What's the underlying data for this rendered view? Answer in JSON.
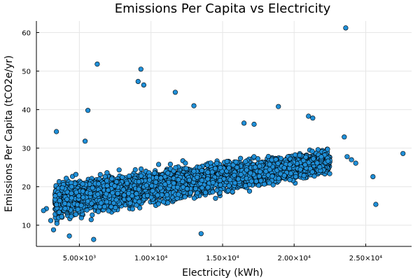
{
  "chart_data": {
    "type": "scatter",
    "title": "Emissions Per Capita vs Electricity",
    "xlabel": "Electricity (kWh)",
    "ylabel": "Emissions Per Capita (tCO2e/yr)",
    "xlim": [
      2000,
      28200
    ],
    "ylim": [
      4.5,
      63
    ],
    "grid": true,
    "legend": "none",
    "marker_color": "#1f8fd8",
    "x_ticks": [
      {
        "value": 5000,
        "label": "5.00×10³"
      },
      {
        "value": 10000,
        "label": "1.00×10⁴"
      },
      {
        "value": 15000,
        "label": "1.50×10⁴"
      },
      {
        "value": 20000,
        "label": "2.00×10⁴"
      },
      {
        "value": 25000,
        "label": "2.50×10⁴"
      }
    ],
    "y_ticks": [
      {
        "value": 10,
        "label": "10"
      },
      {
        "value": 20,
        "label": "20"
      },
      {
        "value": 30,
        "label": "30"
      },
      {
        "value": 40,
        "label": "40"
      },
      {
        "value": 50,
        "label": "50"
      },
      {
        "value": 60,
        "label": "60"
      }
    ],
    "series": [
      {
        "points": [
          {
            "x": 23600,
            "y": 61.2
          },
          {
            "x": 6250,
            "y": 51.8
          },
          {
            "x": 9300,
            "y": 50.5
          },
          {
            "x": 9100,
            "y": 47.3
          },
          {
            "x": 9500,
            "y": 46.4
          },
          {
            "x": 11700,
            "y": 44.5
          },
          {
            "x": 13000,
            "y": 41.0
          },
          {
            "x": 18900,
            "y": 40.8
          },
          {
            "x": 5600,
            "y": 39.8
          },
          {
            "x": 21000,
            "y": 38.3
          },
          {
            "x": 21300,
            "y": 37.8
          },
          {
            "x": 16500,
            "y": 36.5
          },
          {
            "x": 17200,
            "y": 36.2
          },
          {
            "x": 3400,
            "y": 34.3
          },
          {
            "x": 23500,
            "y": 32.9
          },
          {
            "x": 5400,
            "y": 31.8
          },
          {
            "x": 27600,
            "y": 28.6
          },
          {
            "x": 23700,
            "y": 27.8
          },
          {
            "x": 24000,
            "y": 27.0
          },
          {
            "x": 24300,
            "y": 26.1
          },
          {
            "x": 25500,
            "y": 22.6
          },
          {
            "x": 25700,
            "y": 15.4
          },
          {
            "x": 2700,
            "y": 14.3
          },
          {
            "x": 2500,
            "y": 13.8
          },
          {
            "x": 3000,
            "y": 11.2
          },
          {
            "x": 3200,
            "y": 8.8
          },
          {
            "x": 4300,
            "y": 7.2
          },
          {
            "x": 6000,
            "y": 6.3
          },
          {
            "x": 13500,
            "y": 7.8
          },
          {
            "x": 19700,
            "y": 21.8
          }
        ]
      }
    ],
    "dense_cluster": {
      "x_range": [
        3300,
        22500
      ],
      "y_center_at_x_min": 16.5,
      "y_center_at_x_max": 26.5,
      "y_spread": 6.5,
      "count": 4200
    }
  }
}
